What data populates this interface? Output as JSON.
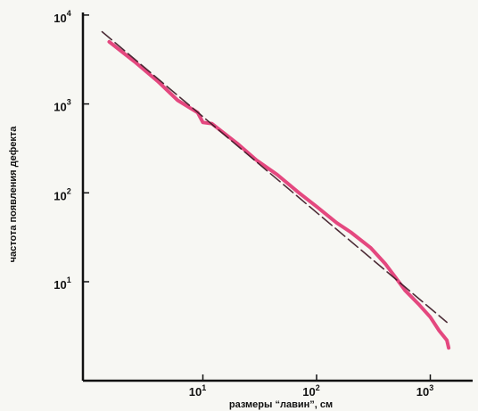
{
  "chart_data": {
    "type": "line",
    "xlabel": "размеры “лавин”, см",
    "ylabel": "частота появления дефекта",
    "x_scale": "log",
    "y_scale": "log",
    "xlim": [
      1.3,
      2000
    ],
    "ylim": [
      1.5,
      12000
    ],
    "x_ticks": [
      {
        "base": "10",
        "exp": "1",
        "value": 10
      },
      {
        "base": "10",
        "exp": "2",
        "value": 100
      },
      {
        "base": "10",
        "exp": "3",
        "value": 1000
      }
    ],
    "y_ticks": [
      {
        "base": "10",
        "exp": "1",
        "value": 10
      },
      {
        "base": "10",
        "exp": "2",
        "value": 100
      },
      {
        "base": "10",
        "exp": "3",
        "value": 1000
      },
      {
        "base": "10",
        "exp": "4",
        "value": 10000
      }
    ],
    "grid": false,
    "series": [
      {
        "style": "measured",
        "color": "#e0296a",
        "x": [
          1.5,
          2.5,
          4,
          6,
          9,
          10,
          12,
          15,
          20,
          30,
          45,
          70,
          100,
          150,
          200,
          300,
          400,
          500,
          600,
          800,
          1000,
          1200,
          1400,
          1450
        ],
        "y": [
          5000,
          3000,
          1800,
          1100,
          800,
          620,
          600,
          480,
          360,
          230,
          160,
          100,
          70,
          46,
          36,
          24,
          16,
          11,
          8,
          5.5,
          4,
          2.8,
          2.2,
          1.8
        ]
      },
      {
        "style": "power-law fit (dashed)",
        "color": "#3a1622",
        "x": [
          1.3,
          1400
        ],
        "y": [
          6500,
          3.5
        ]
      }
    ]
  }
}
